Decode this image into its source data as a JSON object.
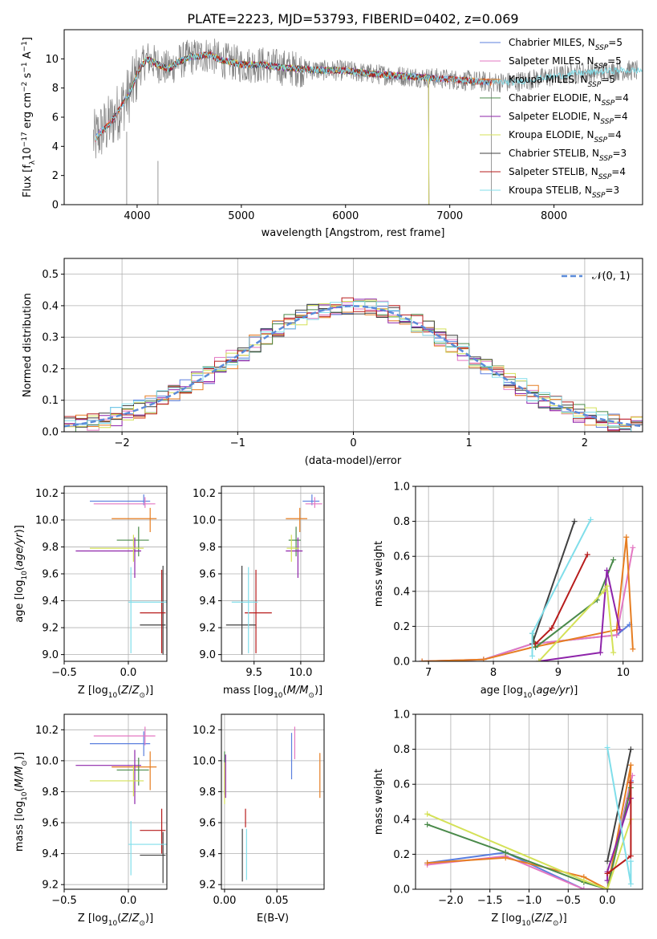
{
  "figure": {
    "title": "PLATE=2223, MJD=53793, FIBERID=0402, z=0.069",
    "colors": {
      "Chabrier MILES": "#5b7fde",
      "Salpeter MILES": "#e377c2",
      "Kroupa MILES": "#e67e22",
      "Chabrier ELODIE": "#4a8a4a",
      "Salpeter ELODIE": "#8e24aa",
      "Kroupa ELODIE": "#d4e157",
      "Chabrier STELIB": "#404040",
      "Salpeter STELIB": "#b71c1c",
      "Kroupa STELIB": "#80deea",
      "data": "#7f7f7f",
      "normal": "#5b8bd9"
    }
  },
  "chart_data": [
    {
      "id": "spectrum",
      "type": "line",
      "xlabel": "wavelength [Angstrom, rest frame]",
      "ylabel": "Flux [f",
      "xlim": [
        3300,
        8850
      ],
      "ylim": [
        0,
        12
      ],
      "xticks": [
        "4000",
        "5000",
        "6000",
        "7000",
        "8000"
      ],
      "yticks": [
        "0",
        "2",
        "4",
        "6",
        "8",
        "10"
      ],
      "legend": [
        {
          "model": "Chabrier MILES",
          "nssp": "5"
        },
        {
          "model": "Salpeter MILES",
          "nssp": "5"
        },
        {
          "model": "Kroupa MILES",
          "nssp": "5"
        },
        {
          "model": "Chabrier ELODIE",
          "nssp": "4"
        },
        {
          "model": "Salpeter ELODIE",
          "nssp": "4"
        },
        {
          "model": "Kroupa ELODIE",
          "nssp": "4"
        },
        {
          "model": "Chabrier STELIB",
          "nssp": "3"
        },
        {
          "model": "Salpeter STELIB",
          "nssp": "4"
        },
        {
          "model": "Kroupa STELIB",
          "nssp": "3"
        }
      ],
      "continuum": {
        "x": [
          3600,
          3650,
          3700,
          3750,
          3800,
          3850,
          3900,
          3950,
          4000,
          4050,
          4100,
          4200,
          4300,
          4400,
          4500,
          4600,
          4700,
          4800,
          4900,
          5000,
          5200,
          5400,
          5600,
          5800,
          6000,
          6200,
          6400,
          6600,
          6800,
          7000,
          7200,
          7400,
          7600,
          7800,
          8000,
          8200,
          8400,
          8600,
          8800
        ],
        "y": [
          4.5,
          5.0,
          5.3,
          5.7,
          6.2,
          6.8,
          7.3,
          8.0,
          9.0,
          9.6,
          10.0,
          9.6,
          9.3,
          9.8,
          10.1,
          10.2,
          10.3,
          9.9,
          9.8,
          9.6,
          9.6,
          9.4,
          9.3,
          9.2,
          9.2,
          9.0,
          8.9,
          8.8,
          8.7,
          8.6,
          8.5,
          8.4,
          8.4,
          8.6,
          8.8,
          9.0,
          9.1,
          9.2,
          9.2
        ]
      },
      "model_ranges": [
        [
          3600,
          7400
        ],
        [
          3600,
          7400
        ],
        [
          3600,
          7400
        ],
        [
          3900,
          6800
        ],
        [
          3900,
          6800
        ],
        [
          3900,
          6800
        ],
        [
          3600,
          7400
        ],
        [
          3600,
          7400
        ],
        [
          3600,
          8850
        ]
      ]
    },
    {
      "id": "residuals",
      "type": "area",
      "xlabel": "(data-model)/error",
      "ylabel": "Normed distribution",
      "xlim": [
        -2.5,
        2.5
      ],
      "ylim": [
        0,
        0.55
      ],
      "xticks": [
        "−2",
        "−1",
        "0",
        "1",
        "2"
      ],
      "yticks": [
        "0.0",
        "0.1",
        "0.2",
        "0.3",
        "0.4",
        "0.5"
      ],
      "legend": "𝒩(0, 1)",
      "bins": [
        -2.5,
        -2.4,
        -2.3,
        -2.2,
        -2.1,
        -2.0,
        -1.9,
        -1.8,
        -1.7,
        -1.6,
        -1.5,
        -1.4,
        -1.3,
        -1.2,
        -1.1,
        -1.0,
        -0.9,
        -0.8,
        -0.7,
        -0.6,
        -0.5,
        -0.4,
        -0.3,
        -0.2,
        -0.1,
        0.0,
        0.1,
        0.2,
        0.3,
        0.4,
        0.5,
        0.6,
        0.7,
        0.8,
        0.9,
        1.0,
        1.1,
        1.2,
        1.3,
        1.4,
        1.5,
        1.6,
        1.7,
        1.8,
        1.9,
        2.0,
        2.1,
        2.2,
        2.3,
        2.4
      ]
    },
    {
      "id": "age-vs-Z",
      "type": "scatter",
      "xlabel": "Z [log",
      "ylabel": "age  [log",
      "xlim": [
        -0.5,
        0.3
      ],
      "ylim": [
        8.95,
        10.25
      ],
      "xticks": [
        "−0.5",
        "0.0"
      ],
      "yticks": [
        "9.0",
        "9.2",
        "9.4",
        "9.6",
        "9.8",
        "10.0",
        "10.2"
      ],
      "points": [
        {
          "x": 0.12,
          "y": 10.14,
          "xerr": [
            0.42,
            0.05
          ],
          "yerr": [
            0.03,
            0.05
          ]
        },
        {
          "x": 0.13,
          "y": 10.12,
          "xerr": [
            0.4,
            0.08
          ],
          "yerr": [
            0.03,
            0.05
          ]
        },
        {
          "x": 0.17,
          "y": 10.01,
          "xerr": [
            0.3,
            0.05
          ],
          "yerr": [
            0.1,
            0.08
          ]
        },
        {
          "x": 0.08,
          "y": 9.85,
          "xerr": [
            0.17,
            0.08
          ],
          "yerr": [
            0.12,
            0.1
          ]
        },
        {
          "x": 0.05,
          "y": 9.77,
          "xerr": [
            0.46,
            0.05
          ],
          "yerr": [
            0.2,
            0.1
          ]
        },
        {
          "x": 0.04,
          "y": 9.79,
          "xerr": [
            0.34,
            0.08
          ],
          "yerr": [
            0.1,
            0.1
          ]
        },
        {
          "x": 0.27,
          "y": 9.22,
          "xerr": [
            0.18,
            0.02
          ],
          "yerr": [
            0.22,
            0.44
          ]
        },
        {
          "x": 0.26,
          "y": 9.31,
          "xerr": [
            0.17,
            0.03
          ],
          "yerr": [
            0.3,
            0.32
          ]
        },
        {
          "x": 0.02,
          "y": 9.39,
          "xerr": [
            0.02,
            0.28
          ],
          "yerr": [
            0.38,
            0.26
          ]
        }
      ]
    },
    {
      "id": "age-vs-mass",
      "type": "scatter",
      "xlabel": "mass [log",
      "ylabel": "",
      "xlim": [
        9.15,
        10.25
      ],
      "ylim": [
        8.95,
        10.25
      ],
      "xticks": [
        "9.5",
        "10.0"
      ],
      "yticks": [
        "9.0",
        "9.2",
        "9.4",
        "9.6",
        "9.8",
        "10.0",
        "10.2"
      ],
      "points": [
        {
          "x": 10.12,
          "y": 10.14,
          "xerr": [
            0.1,
            0.08
          ],
          "yerr": [
            0.03,
            0.05
          ]
        },
        {
          "x": 10.15,
          "y": 10.12,
          "xerr": [
            0.1,
            0.08
          ],
          "yerr": [
            0.03,
            0.05
          ]
        },
        {
          "x": 9.99,
          "y": 10.01,
          "xerr": [
            0.15,
            0.08
          ],
          "yerr": [
            0.1,
            0.08
          ]
        },
        {
          "x": 9.95,
          "y": 9.85,
          "xerr": [
            0.08,
            0.05
          ],
          "yerr": [
            0.12,
            0.1
          ]
        },
        {
          "x": 9.97,
          "y": 9.77,
          "xerr": [
            0.13,
            0.05
          ],
          "yerr": [
            0.2,
            0.1
          ]
        },
        {
          "x": 9.9,
          "y": 9.79,
          "xerr": [
            0.05,
            0.08
          ],
          "yerr": [
            0.1,
            0.1
          ]
        },
        {
          "x": 9.37,
          "y": 9.22,
          "xerr": [
            0.17,
            0.15
          ],
          "yerr": [
            0.22,
            0.44
          ]
        },
        {
          "x": 9.52,
          "y": 9.31,
          "xerr": [
            0.12,
            0.17
          ],
          "yerr": [
            0.3,
            0.32
          ]
        },
        {
          "x": 9.44,
          "y": 9.39,
          "xerr": [
            0.18,
            0.1
          ],
          "yerr": [
            0.38,
            0.26
          ]
        }
      ]
    },
    {
      "id": "weight-vs-age",
      "type": "line",
      "xlabel": "age  [log",
      "ylabel": "mass weight",
      "xlim": [
        6.8,
        10.3
      ],
      "ylim": [
        0,
        1
      ],
      "xticks": [
        "7",
        "8",
        "9",
        "10"
      ],
      "yticks": [
        "0.0",
        "0.2",
        "0.4",
        "0.6",
        "0.8",
        "1.0"
      ],
      "series": [
        {
          "x": [
            6.9,
            7.85,
            8.6,
            9.9,
            10.1
          ],
          "y": [
            0.0,
            0.01,
            0.1,
            0.15,
            0.21
          ]
        },
        {
          "x": [
            6.9,
            7.85,
            8.6,
            9.9,
            10.15
          ],
          "y": [
            0.0,
            0.01,
            0.1,
            0.15,
            0.65
          ]
        },
        {
          "x": [
            6.9,
            7.85,
            8.6,
            9.9,
            10.05,
            10.15
          ],
          "y": [
            0.0,
            0.01,
            0.08,
            0.18,
            0.71,
            0.07
          ]
        },
        {
          "x": [
            8.6,
            8.65,
            9.6,
            9.85
          ],
          "y": [
            0.16,
            0.08,
            0.35,
            0.58
          ]
        },
        {
          "x": [
            8.7,
            9.65,
            9.75,
            9.95
          ],
          "y": [
            0.0,
            0.05,
            0.52,
            0.18
          ]
        },
        {
          "x": [
            8.7,
            9.7,
            9.75,
            9.85
          ],
          "y": [
            0.0,
            0.4,
            0.43,
            0.05
          ]
        },
        {
          "x": [
            8.6,
            9.25
          ],
          "y": [
            0.1,
            0.8
          ]
        },
        {
          "x": [
            8.65,
            8.9,
            9.45
          ],
          "y": [
            0.1,
            0.19,
            0.61
          ]
        },
        {
          "x": [
            8.6,
            8.6,
            9.5
          ],
          "y": [
            0.03,
            0.16,
            0.81
          ]
        }
      ]
    },
    {
      "id": "mass-vs-Z",
      "type": "scatter",
      "xlabel": "Z [log",
      "ylabel": "mass [log",
      "xlim": [
        -0.5,
        0.3
      ],
      "ylim": [
        9.17,
        10.3
      ],
      "xticks": [
        "−0.5",
        "0.0"
      ],
      "yticks": [
        "9.2",
        "9.4",
        "9.6",
        "9.8",
        "10.0",
        "10.2"
      ],
      "points": [
        {
          "x": 0.12,
          "y": 10.11,
          "xerr": [
            0.42,
            0.05
          ],
          "yerr": [
            0.08,
            0.08
          ]
        },
        {
          "x": 0.13,
          "y": 10.16,
          "xerr": [
            0.4,
            0.08
          ],
          "yerr": [
            0.06,
            0.06
          ]
        },
        {
          "x": 0.17,
          "y": 9.96,
          "xerr": [
            0.3,
            0.05
          ],
          "yerr": [
            0.15,
            0.1
          ]
        },
        {
          "x": 0.08,
          "y": 9.94,
          "xerr": [
            0.17,
            0.08
          ],
          "yerr": [
            0.1,
            0.08
          ]
        },
        {
          "x": 0.05,
          "y": 9.97,
          "xerr": [
            0.46,
            0.05
          ],
          "yerr": [
            0.25,
            0.1
          ]
        },
        {
          "x": 0.04,
          "y": 9.87,
          "xerr": [
            0.34,
            0.08
          ],
          "yerr": [
            0.1,
            0.1
          ]
        },
        {
          "x": 0.27,
          "y": 9.39,
          "xerr": [
            0.18,
            0.02
          ],
          "yerr": [
            0.18,
            0.15
          ]
        },
        {
          "x": 0.26,
          "y": 9.55,
          "xerr": [
            0.17,
            0.03
          ],
          "yerr": [
            0.15,
            0.14
          ]
        },
        {
          "x": 0.02,
          "y": 9.46,
          "xerr": [
            0.02,
            0.28
          ],
          "yerr": [
            0.2,
            0.15
          ]
        }
      ]
    },
    {
      "id": "mass-vs-EBV",
      "type": "scatter",
      "xlabel": "E(B-V)",
      "ylabel": "",
      "xlim": [
        -0.003,
        0.095
      ],
      "ylim": [
        9.17,
        10.3
      ],
      "xticks": [
        "0.00",
        "0.05"
      ],
      "yticks": [
        "9.2",
        "9.4",
        "9.6",
        "9.8",
        "10.0",
        "10.2"
      ],
      "points": [
        {
          "x": 0.064,
          "y": 10.04,
          "yerr": [
            0.16,
            0.14
          ]
        },
        {
          "x": 0.067,
          "y": 10.11,
          "yerr": [
            0.1,
            0.11
          ]
        },
        {
          "x": 0.091,
          "y": 9.93,
          "yerr": [
            0.17,
            0.12
          ]
        },
        {
          "x": 0.0,
          "y": 9.98,
          "yerr": [
            0.2,
            0.08
          ]
        },
        {
          "x": 0.001,
          "y": 9.96,
          "yerr": [
            0.2,
            0.08
          ]
        },
        {
          "x": 0.0,
          "y": 9.87,
          "yerr": [
            0.15,
            0.12
          ]
        },
        {
          "x": 0.017,
          "y": 9.34,
          "yerr": [
            0.12,
            0.22
          ]
        },
        {
          "x": 0.02,
          "y": 9.62,
          "yerr": [
            0.05,
            0.07
          ]
        },
        {
          "x": 0.021,
          "y": 9.39,
          "yerr": [
            0.16,
            0.17
          ]
        }
      ]
    },
    {
      "id": "weight-vs-Z",
      "type": "line",
      "xlabel": "Z [log",
      "ylabel": "mass weight",
      "xlim": [
        -2.45,
        0.45
      ],
      "ylim": [
        0,
        1
      ],
      "xticks": [
        "−2.0",
        "−1.5",
        "−1.0",
        "−0.5",
        "0.0"
      ],
      "yticks": [
        "0.0",
        "0.2",
        "0.4",
        "0.6",
        "0.8",
        "1.0"
      ],
      "series": [
        {
          "x": [
            -2.3,
            -1.3,
            -0.3,
            0.0,
            0.3
          ],
          "y": [
            0.15,
            0.21,
            0.0,
            0.0,
            0.62
          ]
        },
        {
          "x": [
            -2.3,
            -1.3,
            -0.3,
            0.0,
            0.32
          ],
          "y": [
            0.14,
            0.19,
            0.0,
            0.0,
            0.65
          ]
        },
        {
          "x": [
            -2.3,
            -1.3,
            -0.3,
            0.0,
            0.3,
            0.28
          ],
          "y": [
            0.15,
            0.18,
            0.07,
            0.0,
            0.71,
            0.52
          ]
        },
        {
          "x": [
            -2.3,
            -1.3,
            -0.3,
            0.0,
            0.3
          ],
          "y": [
            0.37,
            0.21,
            0.04,
            0.0,
            0.58
          ]
        },
        {
          "x": [
            0.0,
            0.0,
            0.3
          ],
          "y": [
            0.05,
            0.1,
            0.52
          ]
        },
        {
          "x": [
            -2.3,
            -0.3,
            0.0,
            0.3
          ],
          "y": [
            0.43,
            0.05,
            0.0,
            0.4
          ]
        },
        {
          "x": [
            0.0,
            0.3
          ],
          "y": [
            0.16,
            0.8
          ]
        },
        {
          "x": [
            0.0,
            0.3,
            0.3
          ],
          "y": [
            0.09,
            0.19,
            0.61
          ]
        },
        {
          "x": [
            0.0,
            0.3,
            0.3
          ],
          "y": [
            0.81,
            0.03,
            0.16
          ]
        }
      ]
    }
  ]
}
